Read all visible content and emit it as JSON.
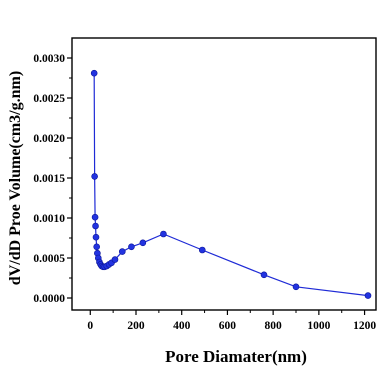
{
  "chart_data": {
    "type": "line",
    "xlabel": "Pore Diamater(nm)",
    "ylabel": "dV/dD Proe Volume(cm3/g.nm)",
    "xlim": [
      -80,
      1250
    ],
    "ylim": [
      -0.00015,
      0.00325
    ],
    "xticks": [
      "0",
      "200",
      "400",
      "600",
      "800",
      "1000",
      "1200"
    ],
    "yticks": [
      "0.0000",
      "0.0005",
      "0.0010",
      "0.0015",
      "0.0020",
      "0.0025",
      "0.0030"
    ],
    "grid": false,
    "legend": "none",
    "line_color": "#1f2bd6",
    "marker_color": "#2233e0",
    "series": [
      {
        "x": [
          17,
          19,
          21,
          23,
          25,
          28,
          31,
          35,
          40,
          45,
          50,
          56,
          63,
          72,
          82,
          93,
          108,
          140,
          180,
          230,
          320,
          490,
          760,
          900,
          1215
        ],
        "y": [
          0.00281,
          0.00152,
          0.00101,
          0.0009,
          0.00076,
          0.00064,
          0.00056,
          0.0005,
          0.00045,
          0.00042,
          0.0004,
          0.00039,
          0.00039,
          0.0004,
          0.00042,
          0.00044,
          0.00048,
          0.00058,
          0.00064,
          0.00069,
          0.0008,
          0.0006,
          0.00029,
          0.00014,
          3e-05
        ]
      }
    ]
  }
}
